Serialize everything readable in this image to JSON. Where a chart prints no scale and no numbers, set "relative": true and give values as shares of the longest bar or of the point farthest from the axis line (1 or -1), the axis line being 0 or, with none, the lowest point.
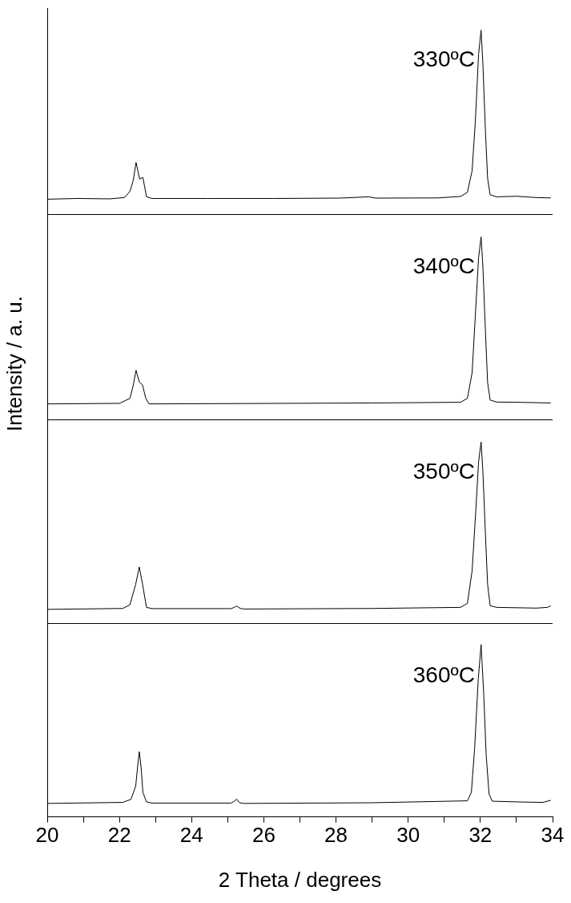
{
  "chart_data": [
    {
      "type": "line",
      "relative": true,
      "xlim": [
        20,
        34
      ],
      "tick_labels": false,
      "grid": false,
      "legend": false,
      "marker": "none",
      "annotations": [
        "330ºC"
      ],
      "x": [
        20.0,
        20.82,
        21.73,
        22.14,
        22.29,
        22.38,
        22.46,
        22.56,
        22.65,
        22.75,
        22.91,
        24.45,
        26.27,
        28.09,
        28.91,
        29.09,
        30.82,
        31.45,
        31.64,
        31.77,
        31.86,
        31.95,
        32.02,
        32.07,
        32.14,
        32.2,
        32.27,
        32.45,
        33.0,
        33.55,
        33.95
      ],
      "series": [
        {
          "color": "#000000",
          "values": [
            0.085,
            0.089,
            0.087,
            0.094,
            0.127,
            0.185,
            0.284,
            0.194,
            0.203,
            0.098,
            0.089,
            0.089,
            0.089,
            0.091,
            0.098,
            0.091,
            0.092,
            0.1,
            0.122,
            0.239,
            0.507,
            0.87,
            1,
            0.815,
            0.453,
            0.199,
            0.109,
            0.098,
            0.101,
            0.094,
            0.092
          ]
        }
      ]
    },
    {
      "type": "line",
      "relative": true,
      "xlim": [
        20,
        34
      ],
      "tick_labels": false,
      "grid": false,
      "legend": false,
      "marker": "none",
      "ylabel": "Intensity / a. u.",
      "annotations": [
        "340ºC"
      ],
      "x": [
        20.0,
        22.0,
        22.29,
        22.38,
        22.46,
        22.55,
        22.64,
        22.73,
        22.82,
        25.36,
        29.0,
        31.45,
        31.64,
        31.77,
        31.86,
        31.95,
        32.02,
        32.07,
        32.14,
        32.2,
        32.27,
        32.45,
        33.0,
        33.95
      ],
      "series": [
        {
          "color": "#000000",
          "values": [
            0.089,
            0.092,
            0.119,
            0.188,
            0.272,
            0.209,
            0.192,
            0.119,
            0.089,
            0.091,
            0.094,
            0.098,
            0.119,
            0.258,
            0.572,
            0.887,
            1,
            0.834,
            0.485,
            0.206,
            0.11,
            0.099,
            0.098,
            0.094
          ]
        }
      ]
    },
    {
      "type": "line",
      "relative": true,
      "xlim": [
        20,
        34
      ],
      "tick_labels": false,
      "grid": false,
      "legend": false,
      "marker": "none",
      "annotations": [
        "350ºC"
      ],
      "x": [
        20.0,
        22.09,
        22.29,
        22.45,
        22.55,
        22.64,
        22.75,
        22.91,
        25.09,
        25.18,
        25.25,
        25.35,
        25.45,
        29.0,
        31.45,
        31.64,
        31.77,
        31.86,
        31.95,
        32.02,
        32.07,
        32.14,
        32.2,
        32.27,
        32.45,
        33.55,
        33.86,
        33.95
      ],
      "series": [
        {
          "color": "#000000",
          "values": [
            0.08,
            0.085,
            0.105,
            0.218,
            0.313,
            0.218,
            0.091,
            0.084,
            0.084,
            0.091,
            0.098,
            0.085,
            0.082,
            0.085,
            0.091,
            0.113,
            0.291,
            0.582,
            0.891,
            1,
            0.836,
            0.491,
            0.218,
            0.1,
            0.091,
            0.087,
            0.091,
            0.1
          ]
        }
      ]
    },
    {
      "type": "line",
      "relative": true,
      "xlim": [
        20,
        34
      ],
      "tick_labels": "x",
      "grid": false,
      "legend": false,
      "marker": "none",
      "annotations": [
        "360ºC"
      ],
      "xlabel": "2 Theta / degrees",
      "xticks": [
        20,
        {
          "value": 21,
          "label": null
        },
        22,
        {
          "value": 23,
          "label": null
        },
        24,
        {
          "value": 25,
          "label": null
        },
        26,
        {
          "value": 27,
          "label": null
        },
        28,
        {
          "value": 29,
          "label": null
        },
        30,
        {
          "value": 31,
          "label": null
        },
        32,
        {
          "value": 33,
          "label": null
        },
        34
      ],
      "x": [
        20.0,
        22.09,
        22.32,
        22.45,
        22.51,
        22.55,
        22.6,
        22.65,
        22.75,
        22.91,
        25.09,
        25.18,
        25.25,
        25.33,
        25.45,
        29.0,
        31.64,
        31.75,
        31.84,
        31.94,
        32.02,
        32.09,
        32.16,
        32.24,
        32.33,
        33.0,
        33.73,
        33.95
      ],
      "series": [
        {
          "color": "#000000",
          "values": [
            0.078,
            0.084,
            0.102,
            0.178,
            0.305,
            0.378,
            0.287,
            0.142,
            0.087,
            0.08,
            0.08,
            0.091,
            0.102,
            0.082,
            0.078,
            0.082,
            0.093,
            0.142,
            0.396,
            0.796,
            1,
            0.724,
            0.36,
            0.133,
            0.091,
            0.087,
            0.084,
            0.096
          ]
        }
      ]
    }
  ]
}
